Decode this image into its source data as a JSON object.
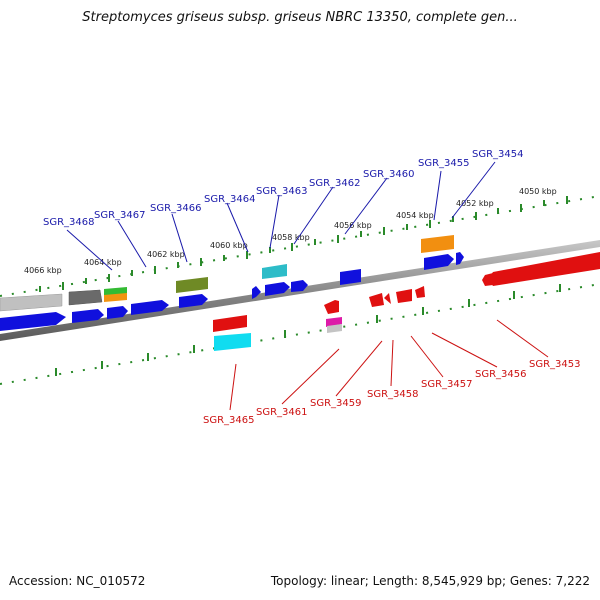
{
  "title": "Streptomyces griseus subsp. griseus NBRC 13350, complete gen...",
  "footer": {
    "accession": "Accession: NC_010572",
    "summary": "Topology: linear; Length: 8,545,929 bp; Genes: 7,222"
  },
  "kbp_labels": [
    "4066 kbp",
    "4064 kbp",
    "4062 kbp",
    "4060 kbp",
    "4058 kbp",
    "4056 kbp",
    "4054 kbp",
    "4052 kbp",
    "4050 kbp"
  ],
  "genes_top": [
    "SGR_3468",
    "SGR_3467",
    "SGR_3466",
    "SGR_3464",
    "SGR_3463",
    "SGR_3462",
    "SGR_3460",
    "SGR_3455",
    "SGR_3454"
  ],
  "genes_bottom": [
    "SGR_3465",
    "SGR_3461",
    "SGR_3459",
    "SGR_3458",
    "SGR_3457",
    "SGR_3456",
    "SGR_3453"
  ],
  "colors": {
    "forward_label": "#1a1aaa",
    "reverse_label": "#cc1111",
    "ruler_tick": "#2a8a2a",
    "axis": "#808080"
  }
}
